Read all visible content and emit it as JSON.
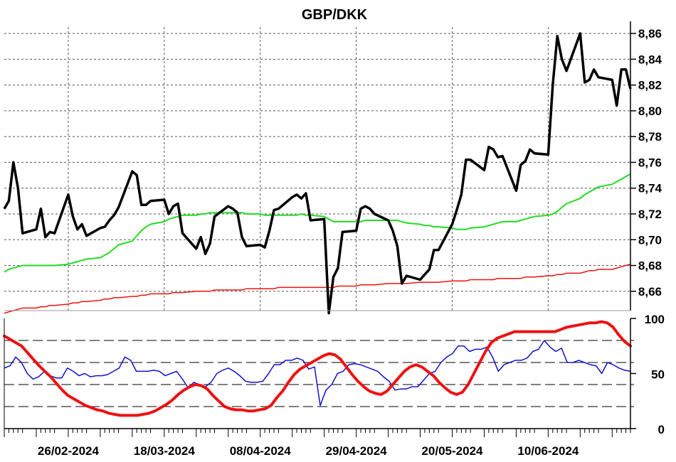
{
  "chart_data": [
    {
      "type": "line",
      "title": "GBP/DKK",
      "x_dates": [
        "2024-02-12",
        "2024-02-13",
        "2024-02-14",
        "2024-02-15",
        "2024-02-16",
        "2024-02-19",
        "2024-02-20",
        "2024-02-21",
        "2024-02-22",
        "2024-02-23",
        "2024-02-26",
        "2024-02-27",
        "2024-02-28",
        "2024-02-29",
        "2024-03-01",
        "2024-03-04",
        "2024-03-05",
        "2024-03-06",
        "2024-03-07",
        "2024-03-08",
        "2024-03-11",
        "2024-03-12",
        "2024-03-13",
        "2024-03-14",
        "2024-03-15",
        "2024-03-18",
        "2024-03-19",
        "2024-03-20",
        "2024-03-21",
        "2024-03-22",
        "2024-03-25",
        "2024-03-26",
        "2024-03-27",
        "2024-03-28",
        "2024-03-29",
        "2024-04-01",
        "2024-04-02",
        "2024-04-03",
        "2024-04-04",
        "2024-04-05",
        "2024-04-08",
        "2024-04-09",
        "2024-04-10",
        "2024-04-11",
        "2024-04-12",
        "2024-04-15",
        "2024-04-16",
        "2024-04-17",
        "2024-04-18",
        "2024-04-19",
        "2024-04-22",
        "2024-04-23",
        "2024-04-24",
        "2024-04-25",
        "2024-04-26",
        "2024-04-29",
        "2024-04-30",
        "2024-05-01",
        "2024-05-02",
        "2024-05-03",
        "2024-05-06",
        "2024-05-07",
        "2024-05-08",
        "2024-05-09",
        "2024-05-10",
        "2024-05-13",
        "2024-05-14",
        "2024-05-15",
        "2024-05-16",
        "2024-05-17",
        "2024-05-20",
        "2024-05-21",
        "2024-05-22",
        "2024-05-23",
        "2024-05-24",
        "2024-05-27",
        "2024-05-28",
        "2024-05-29",
        "2024-05-30",
        "2024-05-31",
        "2024-06-03",
        "2024-06-04",
        "2024-06-05",
        "2024-06-06",
        "2024-06-07",
        "2024-06-10",
        "2024-06-11",
        "2024-06-12",
        "2024-06-13",
        "2024-06-14",
        "2024-06-17",
        "2024-06-18",
        "2024-06-19",
        "2024-06-20",
        "2024-06-21",
        "2024-06-24",
        "2024-06-25",
        "2024-06-26",
        "2024-06-27",
        "2024-06-28"
      ],
      "x_tick_labels": [
        "26/02-2024",
        "18/03-2024",
        "08/04-2024",
        "29/04-2024",
        "20/05-2024",
        "10/06-2024"
      ],
      "y_tick_labels": [
        "8,66",
        "8,68",
        "8,70",
        "8,72",
        "8,74",
        "8,76",
        "8,78",
        "8,80",
        "8,82",
        "8,84",
        "8,86"
      ],
      "ylim": [
        8.645,
        8.865
      ],
      "grid": true,
      "series": [
        {
          "color": "#000000",
          "values": [
            8.724,
            8.73,
            8.76,
            8.74,
            8.705,
            8.708,
            8.724,
            8.702,
            8.706,
            8.705,
            8.735,
            8.718,
            8.708,
            8.712,
            8.703,
            8.709,
            8.71,
            8.715,
            8.719,
            8.725,
            8.753,
            8.75,
            8.727,
            8.727,
            8.73,
            8.731,
            8.72,
            8.726,
            8.728,
            8.705,
            8.693,
            8.702,
            8.689,
            8.697,
            8.718,
            8.726,
            8.724,
            8.721,
            8.702,
            8.695,
            8.696,
            8.694,
            8.707,
            8.723,
            8.724,
            8.733,
            8.735,
            8.732,
            8.736,
            8.715,
            8.716,
            8.643,
            8.671,
            8.678,
            8.706,
            8.707,
            8.724,
            8.726,
            8.724,
            8.72,
            8.715,
            8.707,
            8.695,
            8.666,
            8.672,
            8.669,
            8.673,
            8.677,
            8.692,
            8.692,
            8.712,
            8.723,
            8.735,
            8.762,
            8.762,
            8.754,
            8.772,
            8.77,
            8.764,
            8.765,
            8.738,
            8.758,
            8.761,
            8.77,
            8.767,
            8.766,
            8.82,
            8.858,
            8.84,
            8.831,
            8.86,
            8.822,
            8.824,
            8.832,
            8.826,
            8.824,
            8.804,
            8.832,
            8.832,
            8.817
          ]
        },
        {
          "color": "#22dd22",
          "values": [
            8.675,
            8.677,
            8.678,
            8.679,
            8.68,
            8.68,
            8.68,
            8.68,
            8.68,
            8.68,
            8.681,
            8.682,
            8.683,
            8.684,
            8.685,
            8.686,
            8.688,
            8.69,
            8.693,
            8.696,
            8.699,
            8.703,
            8.707,
            8.71,
            8.712,
            8.714,
            8.716,
            8.717,
            8.718,
            8.719,
            8.719,
            8.72,
            8.72,
            8.721,
            8.721,
            8.721,
            8.721,
            8.721,
            8.721,
            8.72,
            8.72,
            8.719,
            8.719,
            8.719,
            8.719,
            8.719,
            8.719,
            8.72,
            8.719,
            8.719,
            8.718,
            8.716,
            8.714,
            8.714,
            8.714,
            8.714,
            8.714,
            8.715,
            8.715,
            8.715,
            8.715,
            8.715,
            8.715,
            8.714,
            8.713,
            8.712,
            8.711,
            8.711,
            8.71,
            8.71,
            8.709,
            8.708,
            8.708,
            8.708,
            8.709,
            8.71,
            8.711,
            8.712,
            8.713,
            8.714,
            8.714,
            8.715,
            8.716,
            8.717,
            8.718,
            8.719,
            8.72,
            8.722,
            8.725,
            8.728,
            8.732,
            8.735,
            8.737,
            8.739,
            8.741,
            8.743,
            8.745,
            8.747,
            8.749,
            8.751
          ]
        },
        {
          "color": "#ee1111",
          "values": [
            8.643,
            8.644,
            8.645,
            8.646,
            8.647,
            8.647,
            8.648,
            8.648,
            8.649,
            8.649,
            8.65,
            8.651,
            8.651,
            8.652,
            8.652,
            8.653,
            8.654,
            8.654,
            8.655,
            8.655,
            8.656,
            8.656,
            8.657,
            8.657,
            8.658,
            8.658,
            8.658,
            8.659,
            8.659,
            8.659,
            8.66,
            8.66,
            8.66,
            8.66,
            8.661,
            8.661,
            8.661,
            8.661,
            8.661,
            8.662,
            8.662,
            8.662,
            8.662,
            8.662,
            8.663,
            8.663,
            8.663,
            8.663,
            8.663,
            8.663,
            8.663,
            8.663,
            8.663,
            8.664,
            8.664,
            8.664,
            8.665,
            8.665,
            8.665,
            8.665,
            8.666,
            8.666,
            8.666,
            8.666,
            8.666,
            8.667,
            8.667,
            8.667,
            8.667,
            8.667,
            8.668,
            8.668,
            8.668,
            8.668,
            8.669,
            8.669,
            8.669,
            8.669,
            8.67,
            8.67,
            8.67,
            8.67,
            8.671,
            8.671,
            8.671,
            8.672,
            8.672,
            8.673,
            8.673,
            8.674,
            8.674,
            8.675,
            8.676,
            8.676,
            8.677,
            8.677,
            8.678,
            8.679,
            8.68,
            8.681
          ]
        }
      ]
    },
    {
      "type": "line",
      "y_tick_labels": [
        "0",
        "50",
        "100"
      ],
      "ylim": [
        0,
        100
      ],
      "reference_lines": [
        20,
        40,
        60,
        80
      ],
      "series": [
        {
          "color": "#1111cc",
          "values": [
            55,
            57,
            65,
            60,
            50,
            45,
            47,
            52,
            48,
            46,
            46,
            55,
            52,
            48,
            50,
            47,
            48,
            48,
            49,
            52,
            55,
            65,
            62,
            52,
            52,
            52,
            53,
            52,
            48,
            50,
            52,
            45,
            37,
            42,
            40,
            38,
            42,
            50,
            53,
            55,
            52,
            48,
            43,
            42,
            42,
            43,
            50,
            58,
            58,
            62,
            62,
            64,
            62,
            54,
            56,
            21,
            35,
            40,
            50,
            52,
            58,
            59,
            58,
            56,
            54,
            52,
            47,
            43,
            35,
            36,
            36,
            38,
            38,
            44,
            50,
            52,
            60,
            65,
            68,
            75,
            75,
            70,
            72,
            72,
            74,
            65,
            52,
            58,
            60,
            62,
            62,
            64,
            70,
            72,
            80,
            74,
            70,
            73,
            60,
            60,
            62,
            60,
            58,
            57,
            50,
            60,
            58,
            55,
            53,
            52
          ]
        },
        {
          "color": "#ee1111",
          "values": [
            84,
            81,
            78,
            75,
            69,
            63,
            57,
            52,
            47,
            41,
            35,
            30,
            27,
            24,
            21,
            19,
            17,
            16,
            14,
            13,
            12,
            12,
            12,
            12,
            13,
            14,
            16,
            19,
            22,
            26,
            31,
            35,
            38,
            40,
            39,
            36,
            30,
            25,
            20,
            18,
            17,
            17,
            16,
            16,
            17,
            18,
            21,
            28,
            34,
            42,
            49,
            54,
            57,
            60,
            63,
            66,
            68,
            67,
            63,
            56,
            49,
            43,
            38,
            34,
            32,
            31,
            34,
            40,
            46,
            52,
            56,
            58,
            56,
            52,
            48,
            42,
            37,
            33,
            31,
            33,
            40,
            50,
            60,
            70,
            78,
            82,
            84,
            86,
            88,
            88,
            88,
            88,
            88,
            88,
            88,
            88,
            90,
            92,
            93,
            94,
            95,
            96,
            96,
            97,
            96,
            92,
            85,
            79,
            75
          ]
        }
      ]
    }
  ]
}
